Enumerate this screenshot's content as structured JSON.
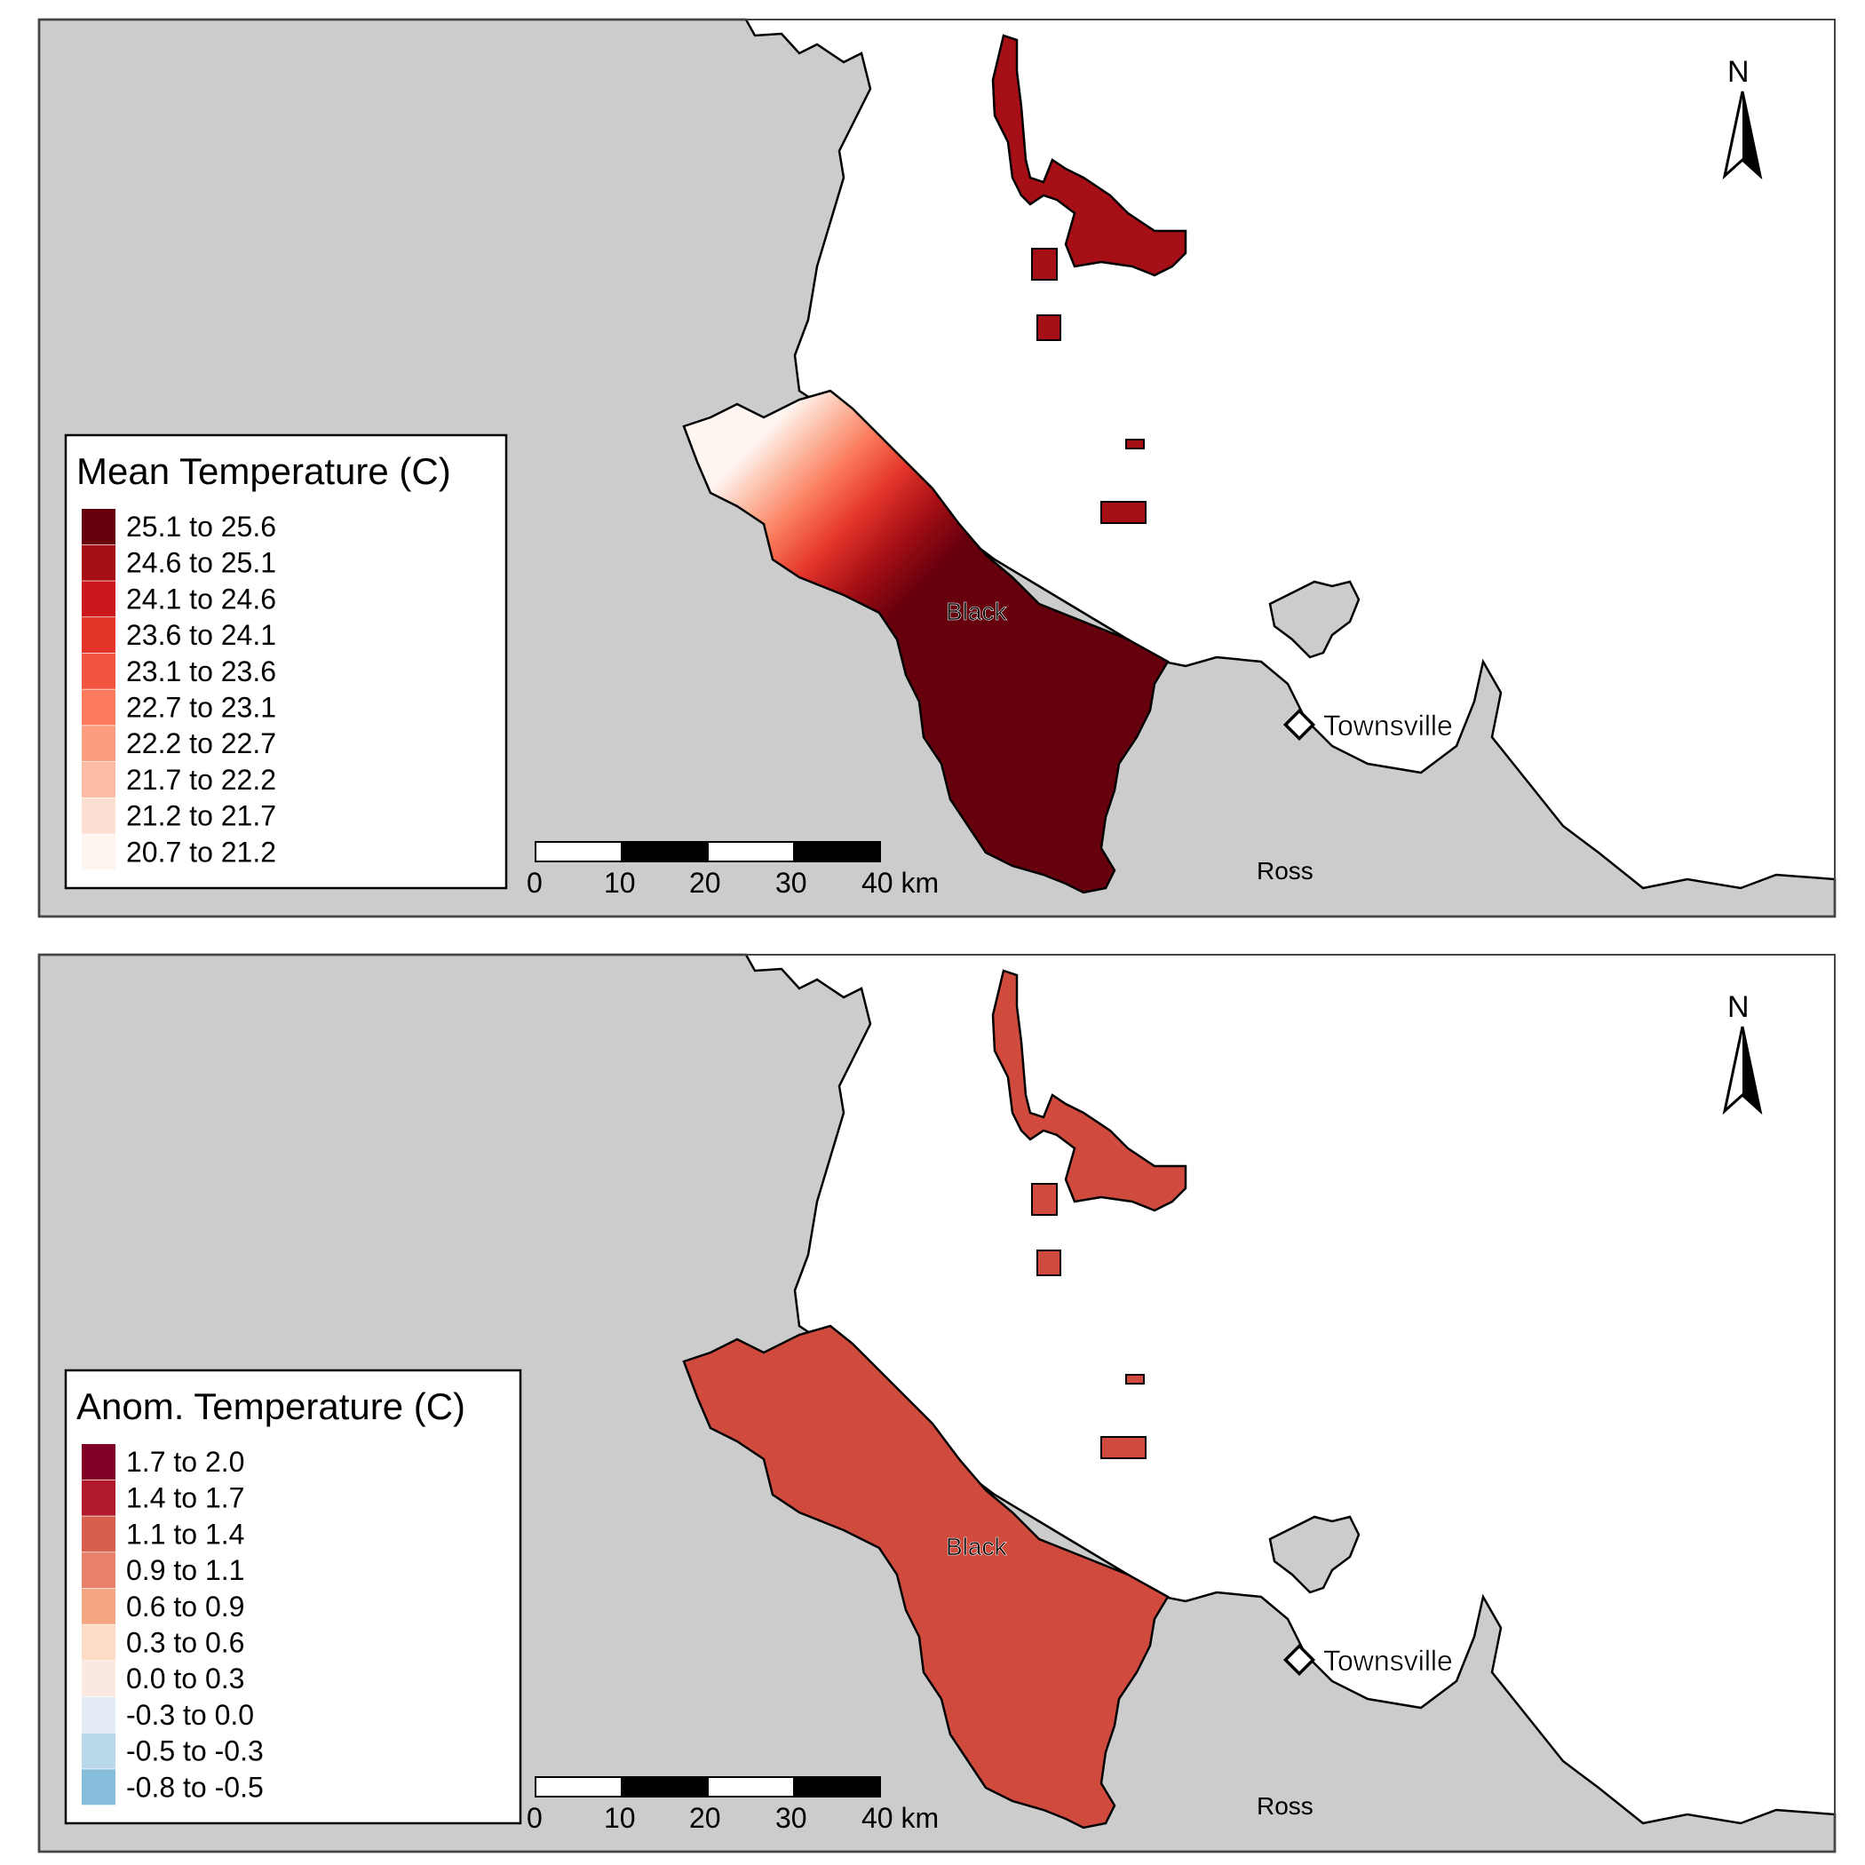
{
  "colors": {
    "land": "#cccccc",
    "sea": "#ffffff",
    "outline": "#000000",
    "panel_border": "#444444"
  },
  "panels": [
    {
      "legend": {
        "title": "Mean Temperature (C)",
        "items": [
          {
            "label": "25.1 to 25.6",
            "color": "#67000d"
          },
          {
            "label": "24.6 to 25.1",
            "color": "#a50f15"
          },
          {
            "label": "24.1 to 24.6",
            "color": "#cb181d"
          },
          {
            "label": "23.6 to 24.1",
            "color": "#e3342a"
          },
          {
            "label": "23.1 to 23.6",
            "color": "#f2553f"
          },
          {
            "label": "22.7 to 23.1",
            "color": "#fb7b5c"
          },
          {
            "label": "22.2 to 22.7",
            "color": "#fc9d80"
          },
          {
            "label": "21.7 to 22.2",
            "color": "#fcbba4"
          },
          {
            "label": "21.2 to 21.7",
            "color": "#fee0d2"
          },
          {
            "label": "20.7 to 21.2",
            "color": "#fff5f0"
          }
        ]
      },
      "north": "N",
      "scalebar": {
        "ticks": [
          "0",
          "10",
          "20",
          "30",
          "40 km"
        ]
      },
      "places": {
        "black": "Black",
        "townsville": "Townsville",
        "ross": "Ross"
      }
    },
    {
      "legend": {
        "title": "Anom. Temperature (C)",
        "items": [
          {
            "label": "1.7 to 2.0",
            "color": "#800026"
          },
          {
            "label": "1.4 to 1.7",
            "color": "#b2182b"
          },
          {
            "label": "1.1 to 1.4",
            "color": "#d6604d"
          },
          {
            "label": "0.9 to 1.1",
            "color": "#e7816a"
          },
          {
            "label": "0.6 to 0.9",
            "color": "#f4a582"
          },
          {
            "label": "0.3 to 0.6",
            "color": "#fddbc7"
          },
          {
            "label": "0.0 to 0.3",
            "color": "#fbe9e1"
          },
          {
            "label": "-0.3 to 0.0",
            "color": "#e3ecf4"
          },
          {
            "label": "-0.5 to -0.3",
            "color": "#b9d8ea"
          },
          {
            "label": "-0.8 to -0.5",
            "color": "#86bedc"
          }
        ]
      },
      "north": "N",
      "scalebar": {
        "ticks": [
          "0",
          "10",
          "20",
          "30",
          "40 km"
        ]
      },
      "places": {
        "black": "Black",
        "townsville": "Townsville",
        "ross": "Ross"
      }
    }
  ]
}
